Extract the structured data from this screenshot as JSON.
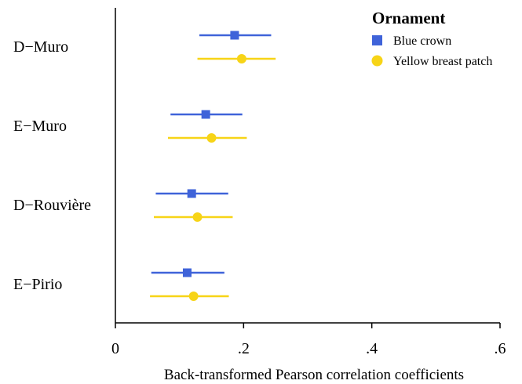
{
  "chart_data": {
    "type": "scatter",
    "subtype": "coefficient-plot",
    "title": "",
    "xlabel": "Back-transformed Pearson correlation coefficients",
    "ylabel": "",
    "xlim": [
      0,
      0.6
    ],
    "xticks": [
      {
        "value": 0,
        "label": "0"
      },
      {
        "value": 0.2,
        "label": ".2"
      },
      {
        "value": 0.4,
        "label": ".4"
      },
      {
        "value": 0.6,
        "label": ".6"
      }
    ],
    "categories": [
      "D−Muro",
      "E−Muro",
      "D−Rouvière",
      "E−Pirio"
    ],
    "legend": {
      "title": "Ornament",
      "position": "top-right"
    },
    "grid": false,
    "series": [
      {
        "name": "Blue crown",
        "color": "#3f63d9",
        "marker": "square",
        "points": [
          {
            "estimate": 0.186,
            "lower": 0.131,
            "upper": 0.243
          },
          {
            "estimate": 0.141,
            "lower": 0.086,
            "upper": 0.198
          },
          {
            "estimate": 0.119,
            "lower": 0.063,
            "upper": 0.176
          },
          {
            "estimate": 0.112,
            "lower": 0.056,
            "upper": 0.17
          }
        ]
      },
      {
        "name": "Yellow breast patch",
        "color": "#f7d417",
        "marker": "circle",
        "points": [
          {
            "estimate": 0.197,
            "lower": 0.128,
            "upper": 0.25
          },
          {
            "estimate": 0.15,
            "lower": 0.082,
            "upper": 0.205
          },
          {
            "estimate": 0.128,
            "lower": 0.06,
            "upper": 0.183
          },
          {
            "estimate": 0.122,
            "lower": 0.054,
            "upper": 0.177
          }
        ]
      }
    ]
  }
}
